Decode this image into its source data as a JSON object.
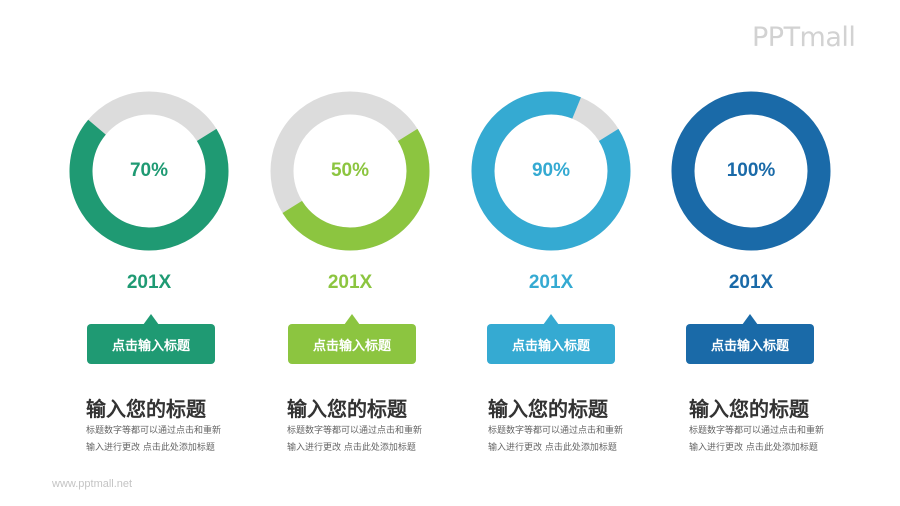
{
  "brand": {
    "logo": "PPTmall",
    "footer": "www.pptmall.net"
  },
  "colors": {
    "track": "#dcdcdc"
  },
  "items": [
    {
      "percent": "70%",
      "value": 70,
      "year": "201X",
      "tag": "点击输入标题",
      "title": "输入您的标题",
      "desc_line1": "标题数字等都可以通过点击和重新",
      "desc_line2": "输入进行更改 点击此处添加标题",
      "color": "#1f9a73"
    },
    {
      "percent": "50%",
      "value": 50,
      "year": "201X",
      "tag": "点击输入标题",
      "title": "输入您的标题",
      "desc_line1": "标题数字等都可以通过点击和重新",
      "desc_line2": "输入进行更改 点击此处添加标题",
      "color": "#8cc540"
    },
    {
      "percent": "90%",
      "value": 90,
      "year": "201X",
      "tag": "点击输入标题",
      "title": "输入您的标题",
      "desc_line1": "标题数字等都可以通过点击和重新",
      "desc_line2": "输入进行更改 点击此处添加标题",
      "color": "#35aad2"
    },
    {
      "percent": "100%",
      "value": 100,
      "year": "201X",
      "tag": "点击输入标题",
      "title": "输入您的标题",
      "desc_line1": "标题数字等都可以通过点击和重新",
      "desc_line2": "输入进行更改 点击此处添加标题",
      "color": "#1a6aa8"
    }
  ],
  "chart_data": {
    "type": "pie",
    "subtype": "donut",
    "categories": [
      "201X",
      "201X",
      "201X",
      "201X"
    ],
    "values": [
      70,
      50,
      90,
      100
    ],
    "labels": [
      "70%",
      "50%",
      "90%",
      "100%"
    ],
    "title": "",
    "legend": "none"
  }
}
